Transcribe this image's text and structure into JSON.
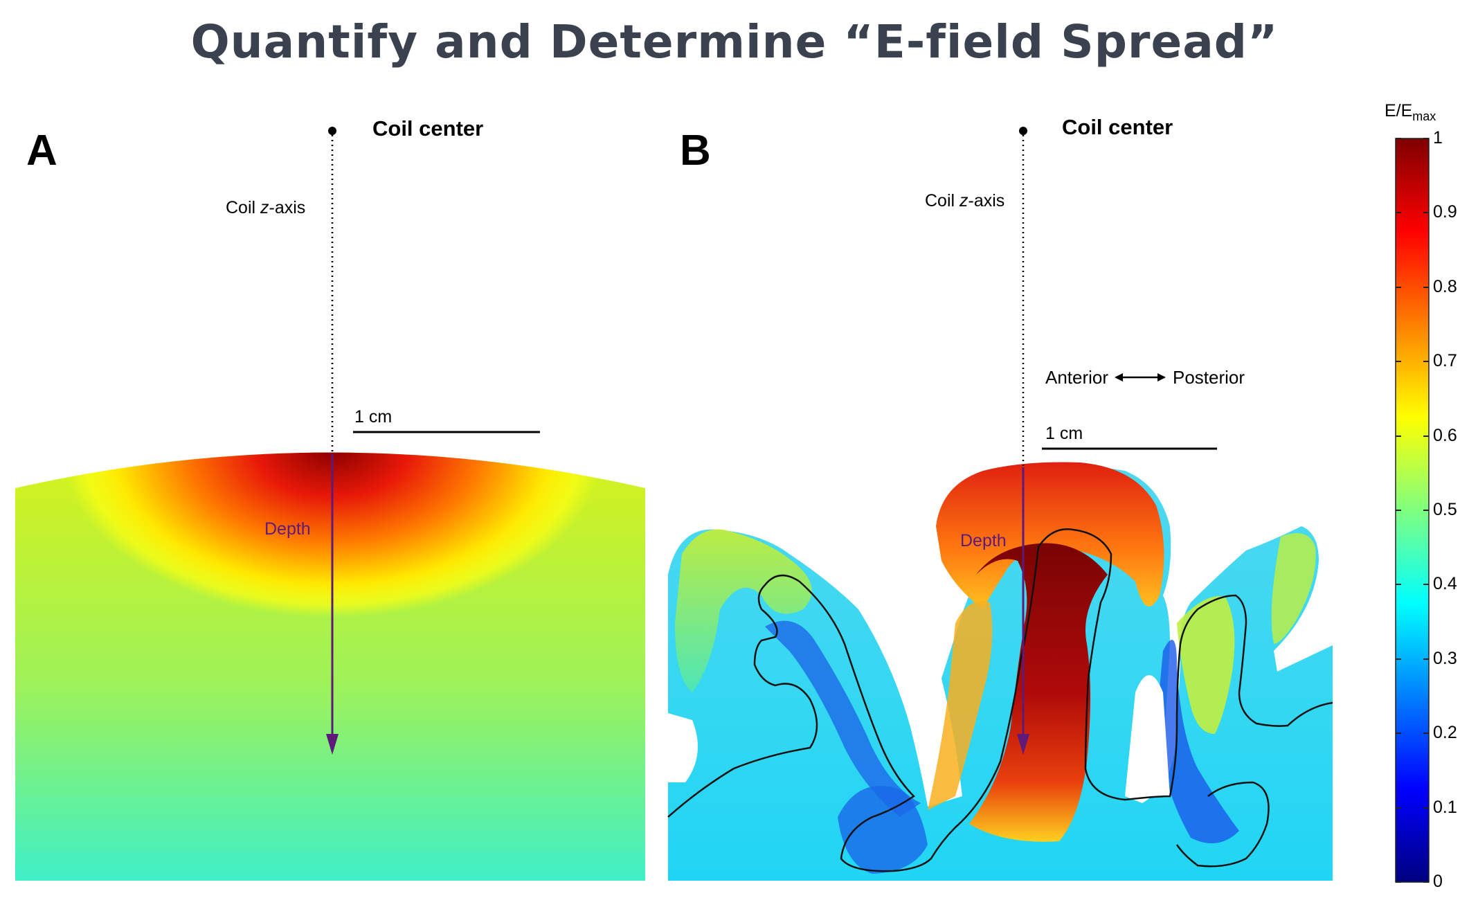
{
  "title": "Quantify and Determine “E-field Spread”",
  "panels": {
    "a": {
      "letter": "A",
      "coil_center": "Coil center",
      "coil_axis_prefix": "Coil ",
      "coil_axis_italic": "z",
      "coil_axis_suffix": "-axis",
      "scale": "1 cm",
      "depth": "Depth"
    },
    "b": {
      "letter": "B",
      "coil_center": "Coil center",
      "coil_axis_prefix": "Coil ",
      "coil_axis_italic": "z",
      "coil_axis_suffix": "-axis",
      "scale": "1 cm",
      "depth": "Depth",
      "anterior": "Anterior",
      "posterior": "Posterior"
    }
  },
  "colorbar": {
    "label_main": "E/E",
    "label_sub": "max",
    "ticks": [
      "1",
      "0.9",
      "0.8",
      "0.7",
      "0.6",
      "0.5",
      "0.4",
      "0.3",
      "0.2",
      "0.1",
      "0"
    ],
    "colormap": "jet",
    "range": [
      0,
      1
    ]
  },
  "colors": {
    "title": "#3a4250",
    "depth_arrow": "#5e1a78"
  }
}
